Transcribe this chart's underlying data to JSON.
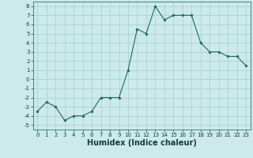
{
  "xlabel": "Humidex (Indice chaleur)",
  "x_values": [
    0,
    1,
    2,
    3,
    4,
    5,
    6,
    7,
    8,
    9,
    10,
    11,
    12,
    13,
    14,
    15,
    16,
    17,
    18,
    19,
    20,
    21,
    22,
    23
  ],
  "y_values": [
    -3.5,
    -2.5,
    -3.0,
    -4.5,
    -4.0,
    -4.0,
    -3.5,
    -2.0,
    -2.0,
    -2.0,
    1.0,
    5.5,
    5.0,
    8.0,
    6.5,
    7.0,
    7.0,
    7.0,
    4.0,
    3.0,
    3.0,
    2.5,
    2.5,
    1.5
  ],
  "line_color": "#1a6b5a",
  "marker_color": "#1a6b5a",
  "bg_color": "#cceaea",
  "grid_color": "#aacccc",
  "ylim": [
    -5.5,
    8.5
  ],
  "xlim": [
    -0.5,
    23.5
  ],
  "yticks": [
    -5,
    -4,
    -3,
    -2,
    -1,
    0,
    1,
    2,
    3,
    4,
    5,
    6,
    7,
    8
  ],
  "xticks": [
    0,
    1,
    2,
    3,
    4,
    5,
    6,
    7,
    8,
    9,
    10,
    11,
    12,
    13,
    14,
    15,
    16,
    17,
    18,
    19,
    20,
    21,
    22,
    23
  ],
  "tick_fontsize": 5.0,
  "xlabel_fontsize": 7.0
}
